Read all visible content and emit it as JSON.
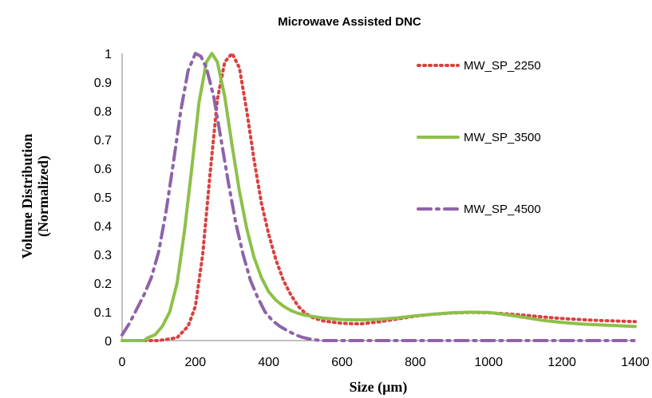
{
  "chart_data": {
    "type": "line",
    "title": "Microwave Assisted DNC",
    "xlabel": "Size (µm)",
    "ylabel_lines": [
      "Volume Distribution",
      "(Normalized)"
    ],
    "xlim": [
      0,
      1400
    ],
    "ylim": [
      0,
      1
    ],
    "xticks": [
      0,
      200,
      400,
      600,
      800,
      1000,
      1200,
      1400
    ],
    "yticks": [
      0,
      0.1,
      0.2,
      0.3,
      0.4,
      0.5,
      0.6,
      0.7,
      0.8,
      0.9,
      1
    ],
    "ytick_labels": [
      "0",
      "0.1",
      "0.2",
      "0.3",
      "0.4",
      "0.5",
      "0.6",
      "0.7",
      "0.8",
      "0.9",
      "1"
    ],
    "grid": false,
    "legend_position": "right",
    "series": [
      {
        "name": "MW_SP_2250",
        "color": "#D9413F",
        "style": "dotted",
        "points": [
          [
            0,
            0
          ],
          [
            100,
            0
          ],
          [
            150,
            0.01
          ],
          [
            180,
            0.05
          ],
          [
            200,
            0.12
          ],
          [
            220,
            0.3
          ],
          [
            240,
            0.58
          ],
          [
            260,
            0.84
          ],
          [
            280,
            0.97
          ],
          [
            300,
            1.0
          ],
          [
            320,
            0.95
          ],
          [
            340,
            0.8
          ],
          [
            360,
            0.63
          ],
          [
            380,
            0.48
          ],
          [
            400,
            0.37
          ],
          [
            420,
            0.28
          ],
          [
            440,
            0.21
          ],
          [
            460,
            0.16
          ],
          [
            480,
            0.12
          ],
          [
            500,
            0.095
          ],
          [
            520,
            0.08
          ],
          [
            550,
            0.068
          ],
          [
            600,
            0.06
          ],
          [
            650,
            0.058
          ],
          [
            700,
            0.065
          ],
          [
            750,
            0.075
          ],
          [
            800,
            0.085
          ],
          [
            850,
            0.092
          ],
          [
            900,
            0.096
          ],
          [
            950,
            0.098
          ],
          [
            1000,
            0.097
          ],
          [
            1050,
            0.093
          ],
          [
            1100,
            0.088
          ],
          [
            1150,
            0.082
          ],
          [
            1200,
            0.077
          ],
          [
            1250,
            0.073
          ],
          [
            1300,
            0.07
          ],
          [
            1350,
            0.068
          ],
          [
            1400,
            0.066
          ]
        ]
      },
      {
        "name": "MW_SP_3500",
        "color": "#8DC04A",
        "style": "solid",
        "points": [
          [
            0,
            0
          ],
          [
            60,
            0
          ],
          [
            70,
            0.01
          ],
          [
            90,
            0.02
          ],
          [
            110,
            0.05
          ],
          [
            130,
            0.1
          ],
          [
            150,
            0.2
          ],
          [
            170,
            0.38
          ],
          [
            190,
            0.6
          ],
          [
            210,
            0.83
          ],
          [
            230,
            0.97
          ],
          [
            245,
            1.0
          ],
          [
            260,
            0.97
          ],
          [
            280,
            0.85
          ],
          [
            300,
            0.68
          ],
          [
            320,
            0.52
          ],
          [
            340,
            0.39
          ],
          [
            360,
            0.29
          ],
          [
            380,
            0.22
          ],
          [
            400,
            0.17
          ],
          [
            420,
            0.14
          ],
          [
            440,
            0.12
          ],
          [
            460,
            0.105
          ],
          [
            480,
            0.095
          ],
          [
            500,
            0.088
          ],
          [
            550,
            0.078
          ],
          [
            600,
            0.073
          ],
          [
            650,
            0.072
          ],
          [
            700,
            0.074
          ],
          [
            750,
            0.079
          ],
          [
            800,
            0.086
          ],
          [
            850,
            0.092
          ],
          [
            900,
            0.097
          ],
          [
            950,
            0.099
          ],
          [
            1000,
            0.098
          ],
          [
            1050,
            0.09
          ],
          [
            1100,
            0.08
          ],
          [
            1150,
            0.07
          ],
          [
            1200,
            0.063
          ],
          [
            1250,
            0.058
          ],
          [
            1300,
            0.055
          ],
          [
            1350,
            0.052
          ],
          [
            1400,
            0.049
          ]
        ]
      },
      {
        "name": "MW_SP_4500",
        "color": "#8E63A8",
        "style": "dashdot",
        "points": [
          [
            0,
            0.02
          ],
          [
            20,
            0.06
          ],
          [
            40,
            0.11
          ],
          [
            60,
            0.16
          ],
          [
            80,
            0.22
          ],
          [
            100,
            0.31
          ],
          [
            120,
            0.45
          ],
          [
            140,
            0.62
          ],
          [
            160,
            0.8
          ],
          [
            180,
            0.94
          ],
          [
            200,
            1.0
          ],
          [
            215,
            0.99
          ],
          [
            230,
            0.95
          ],
          [
            250,
            0.85
          ],
          [
            270,
            0.7
          ],
          [
            290,
            0.55
          ],
          [
            310,
            0.41
          ],
          [
            330,
            0.3
          ],
          [
            350,
            0.21
          ],
          [
            370,
            0.15
          ],
          [
            390,
            0.1
          ],
          [
            410,
            0.07
          ],
          [
            430,
            0.05
          ],
          [
            450,
            0.035
          ],
          [
            470,
            0.022
          ],
          [
            490,
            0.012
          ],
          [
            510,
            0.006
          ],
          [
            530,
            0.002
          ],
          [
            550,
            0
          ],
          [
            600,
            0
          ],
          [
            800,
            0
          ],
          [
            1000,
            0
          ],
          [
            1200,
            0
          ],
          [
            1400,
            0
          ]
        ]
      }
    ]
  }
}
